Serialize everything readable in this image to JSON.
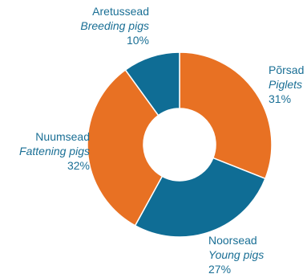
{
  "chart_data": {
    "type": "pie",
    "donut": true,
    "slices": [
      {
        "label": "Põrsad",
        "label_en": "Piglets",
        "value": 31,
        "value_label": "31%",
        "color": "#e87123"
      },
      {
        "label": "Noorsead",
        "label_en": "Young pigs",
        "value": 27,
        "value_label": "27%",
        "color": "#0f6d95"
      },
      {
        "label": "Nuumsead",
        "label_en": "Fattening pigs",
        "value": 32,
        "value_label": "32%",
        "color": "#e87123"
      },
      {
        "label": "Aretussead",
        "label_en": "Breeding pigs",
        "value": 10,
        "value_label": "10%",
        "color": "#0f6d95"
      }
    ],
    "start": "12 o'clock",
    "direction": "clockwise",
    "label_color": "#1a6f95",
    "legend": "none"
  }
}
